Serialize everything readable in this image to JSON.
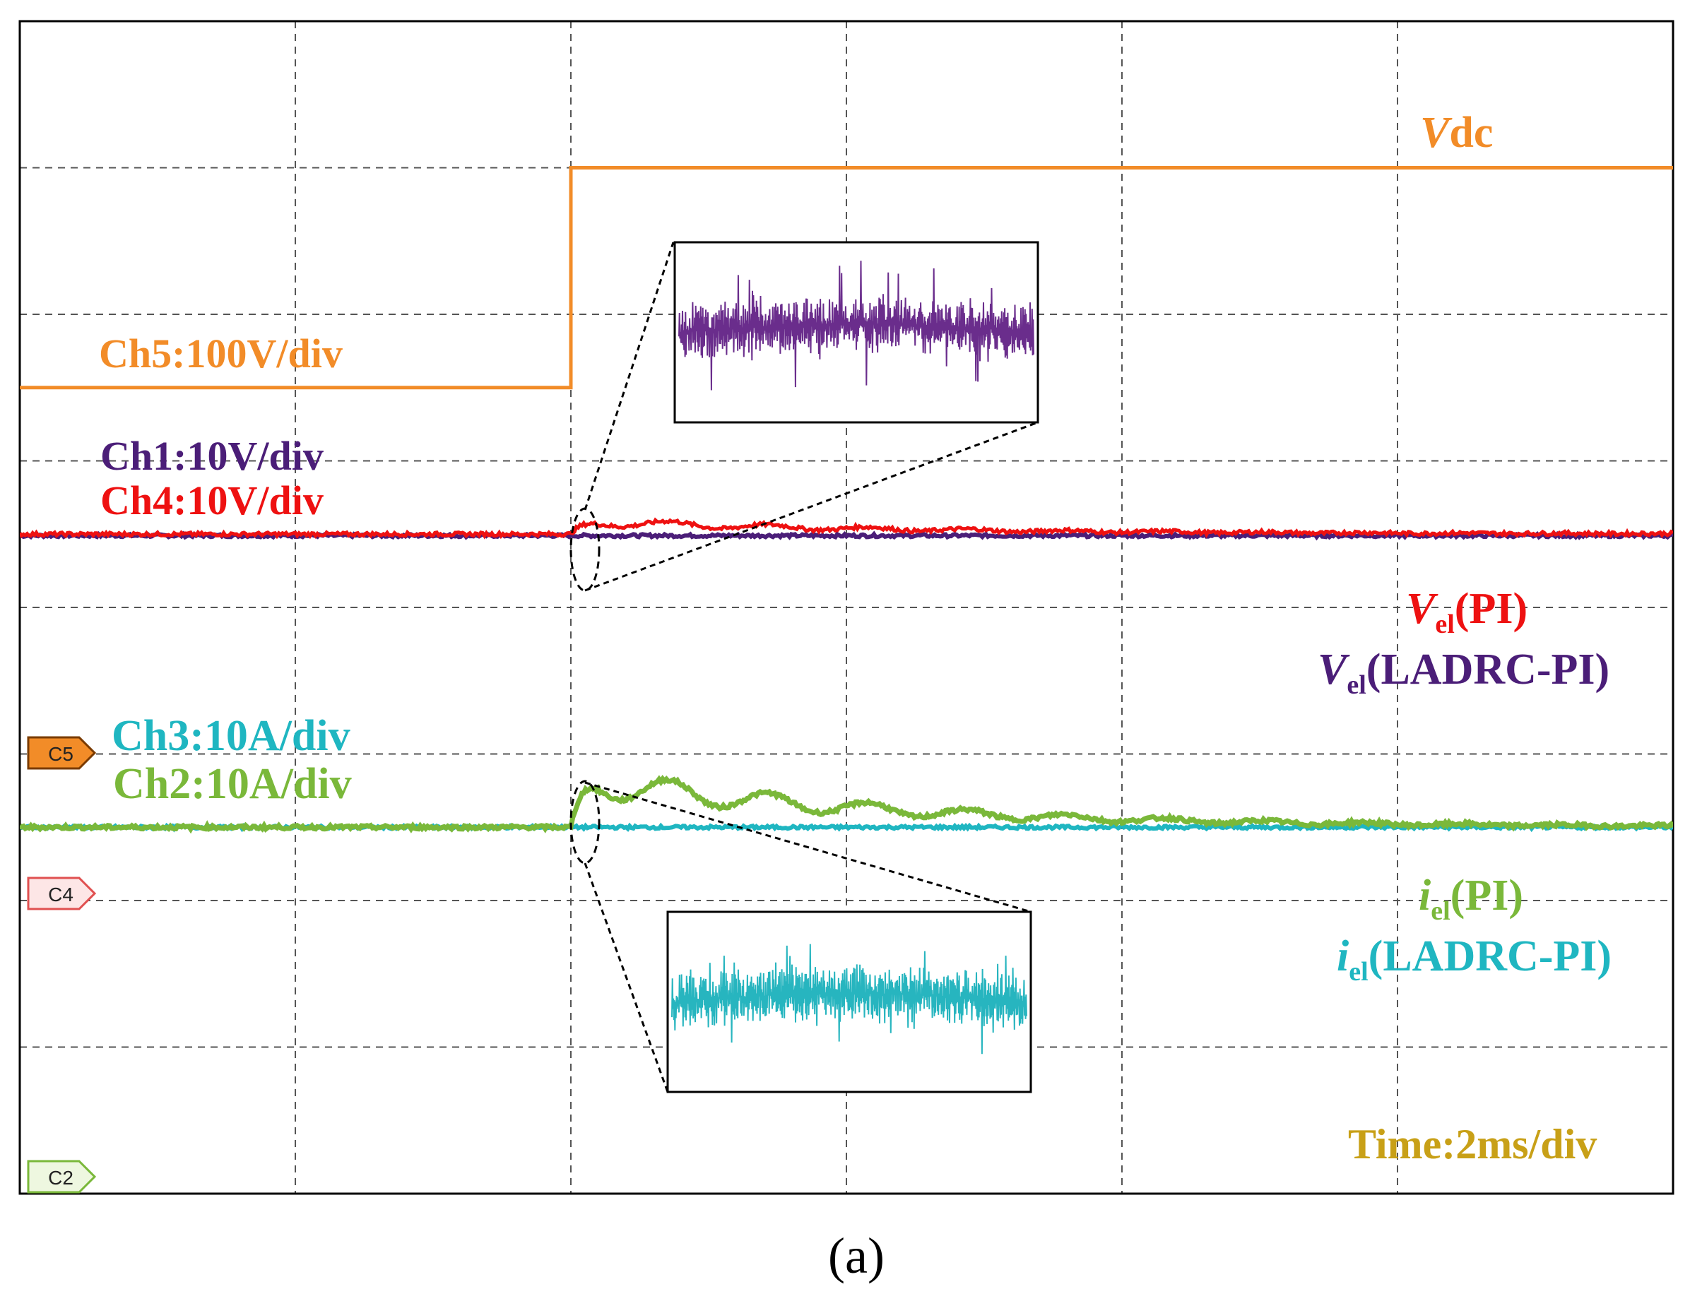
{
  "colors": {
    "vdc": "#f28c28",
    "ch1": "#4b1e78",
    "ch4": "#ee1111",
    "ch3": "#1fb6c1",
    "ch2": "#7ab83a",
    "time": "#c8a017",
    "grid": "#555555",
    "zoom_purple": "#6a2d8c",
    "zoom_cyan": "#27b5bf"
  },
  "labels": {
    "vdc_italic": "V",
    "vdc_rest": "dc",
    "ch5": "Ch5:100V/div",
    "ch1": "Ch1:10V/div",
    "ch4": "Ch4:10V/div",
    "vel_pi_v": "V",
    "vel_pi_sub": "el",
    "vel_pi_rest": "(PI)",
    "vel_ladrc_v": "V",
    "vel_ladrc_sub": "el",
    "vel_ladrc_rest": "(LADRC-PI)",
    "ch3": "Ch3:10A/div",
    "ch2": "Ch2:10A/div",
    "iel_pi_i": "i",
    "iel_pi_sub": "el",
    "iel_pi_rest": "(PI)",
    "iel_ladrc_i": "i",
    "iel_ladrc_sub": "el",
    "iel_ladrc_rest": "(LADRC-PI)",
    "time": "Time:2ms/div",
    "caption": "(a)"
  },
  "markers": [
    {
      "text": "C5",
      "fill": "#f28c28",
      "stroke": "#7a3b00",
      "ink": "#222222"
    },
    {
      "text": "C4",
      "fill": "#fde6e6",
      "stroke": "#e05050",
      "ink": "#222222"
    },
    {
      "text": "C2",
      "fill": "#eef7e0",
      "stroke": "#7ab83a",
      "ink": "#222222"
    }
  ],
  "chart_data": {
    "type": "line",
    "title": "",
    "x_divisions": 6,
    "y_divisions": 8,
    "time_per_div": "2ms",
    "step_time_div": 2.0,
    "series": [
      {
        "name": "Vdc",
        "channel": "Ch5",
        "scale": "100V/div",
        "shape": "step",
        "level_before_div": 5.5,
        "level_after_div": 7.0
      },
      {
        "name": "Vel(LADRC-PI)",
        "channel": "Ch1",
        "scale": "10V/div",
        "shape": "flat",
        "level_div": 4.5
      },
      {
        "name": "Vel(PI)",
        "channel": "Ch4",
        "scale": "10V/div",
        "shape": "damped_bump",
        "level_div": 4.5,
        "peak_div": 0.12
      },
      {
        "name": "iel(LADRC-PI)",
        "channel": "Ch3",
        "scale": "10A/div",
        "shape": "flat",
        "level_div": 2.5
      },
      {
        "name": "iel(PI)",
        "channel": "Ch2",
        "scale": "10A/div",
        "shape": "damped_bump",
        "level_div": 2.5,
        "peak_div": 0.45
      }
    ]
  }
}
